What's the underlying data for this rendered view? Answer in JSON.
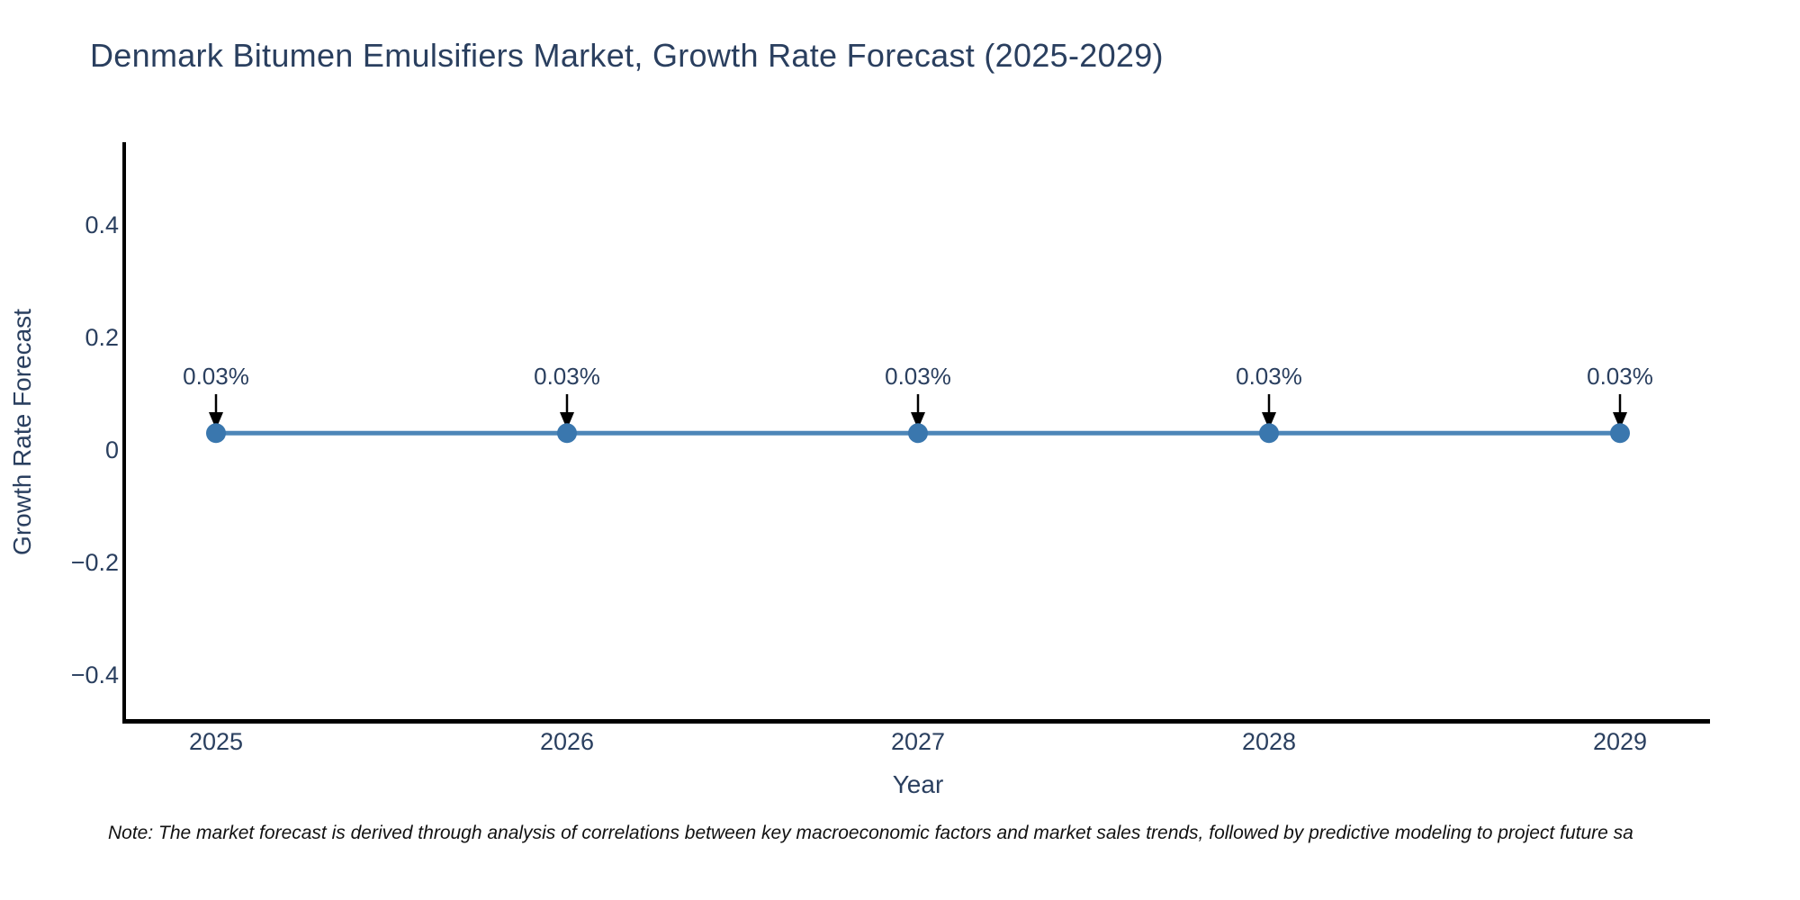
{
  "chart_data": {
    "type": "line",
    "title": "Denmark Bitumen Emulsifiers Market, Growth Rate Forecast (2025-2029)",
    "xlabel": "Year",
    "ylabel": "Growth Rate Forecast",
    "categories": [
      2025,
      2026,
      2027,
      2028,
      2029
    ],
    "series": [
      {
        "name": "Growth Rate Forecast",
        "values": [
          0.03,
          0.03,
          0.03,
          0.03,
          0.03
        ],
        "point_labels": [
          "0.03%",
          "0.03%",
          "0.03%",
          "0.03%",
          "0.03%"
        ]
      }
    ],
    "x_ticks": [
      "2025",
      "2026",
      "2027",
      "2028",
      "2029"
    ],
    "y_ticks": {
      "labels": [
        "0.4",
        "0.2",
        "0",
        "−0.2",
        "−0.4"
      ],
      "values": [
        0.4,
        0.2,
        0,
        -0.2,
        -0.4
      ]
    },
    "ylim": [
      -0.49,
      0.55
    ],
    "grid": false,
    "legend": "none",
    "marker_style": "circle",
    "annotation_arrows": "down",
    "colors": {
      "line": "#4d86b8",
      "marker": "#3a77ae",
      "axis": "#000000",
      "text": "#2a3f5f",
      "arrow": "#000000",
      "note": "#111111",
      "background": "#ffffff"
    }
  },
  "note": {
    "text": "Note: The market forecast is derived through analysis of correlations between key macroeconomic factors and market sales trends, followed by predictive modeling to project future sa"
  }
}
